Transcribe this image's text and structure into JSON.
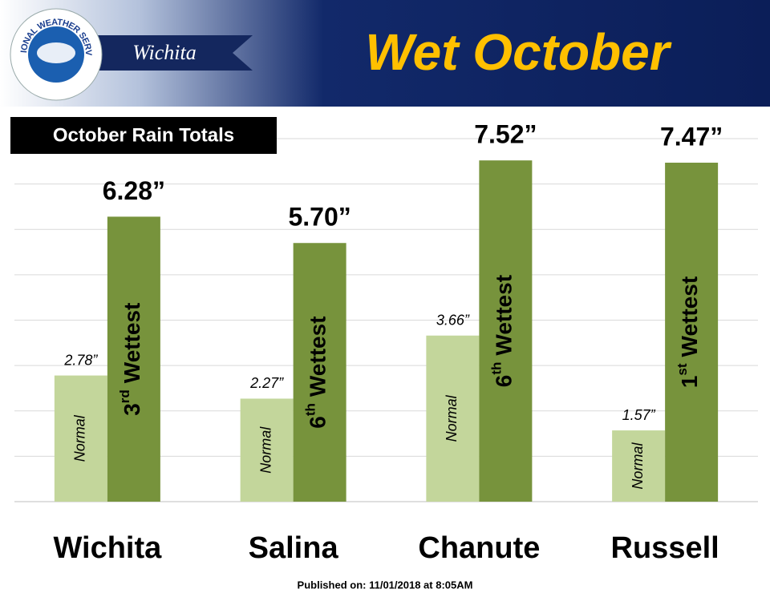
{
  "header": {
    "logo_text": "NATIONAL WEATHER SERVICE",
    "office": "Wichita",
    "title": "Wet October"
  },
  "chart_data": {
    "type": "bar",
    "subtitle": "October Rain Totals",
    "categories": [
      "Wichita",
      "Salina",
      "Chanute",
      "Russell"
    ],
    "series": [
      {
        "name": "Normal",
        "color": "#c3d69b",
        "values": [
          2.78,
          2.27,
          3.66,
          1.57
        ],
        "value_labels": [
          "2.78”",
          "2.27”",
          "3.66”",
          "1.57”"
        ]
      },
      {
        "color": "#77933c",
        "values": [
          6.28,
          5.7,
          7.52,
          7.47
        ],
        "value_labels": [
          "6.28”",
          "5.70”",
          "7.52”",
          "7.47”"
        ],
        "rank_labels": [
          {
            "rank": "3",
            "suffix": "rd",
            "text": "Wettest"
          },
          {
            "rank": "6",
            "suffix": "th",
            "text": "Wettest"
          },
          {
            "rank": "6",
            "suffix": "th",
            "text": "Wettest"
          },
          {
            "rank": "1",
            "suffix": "st",
            "text": "Wettest"
          }
        ]
      }
    ],
    "ylim": [
      0,
      8
    ],
    "yticks": [
      0,
      1,
      2,
      3,
      4,
      5,
      6,
      7,
      8
    ],
    "grid": true
  },
  "footer": "Published on: 11/01/2018 at 8:05AM"
}
